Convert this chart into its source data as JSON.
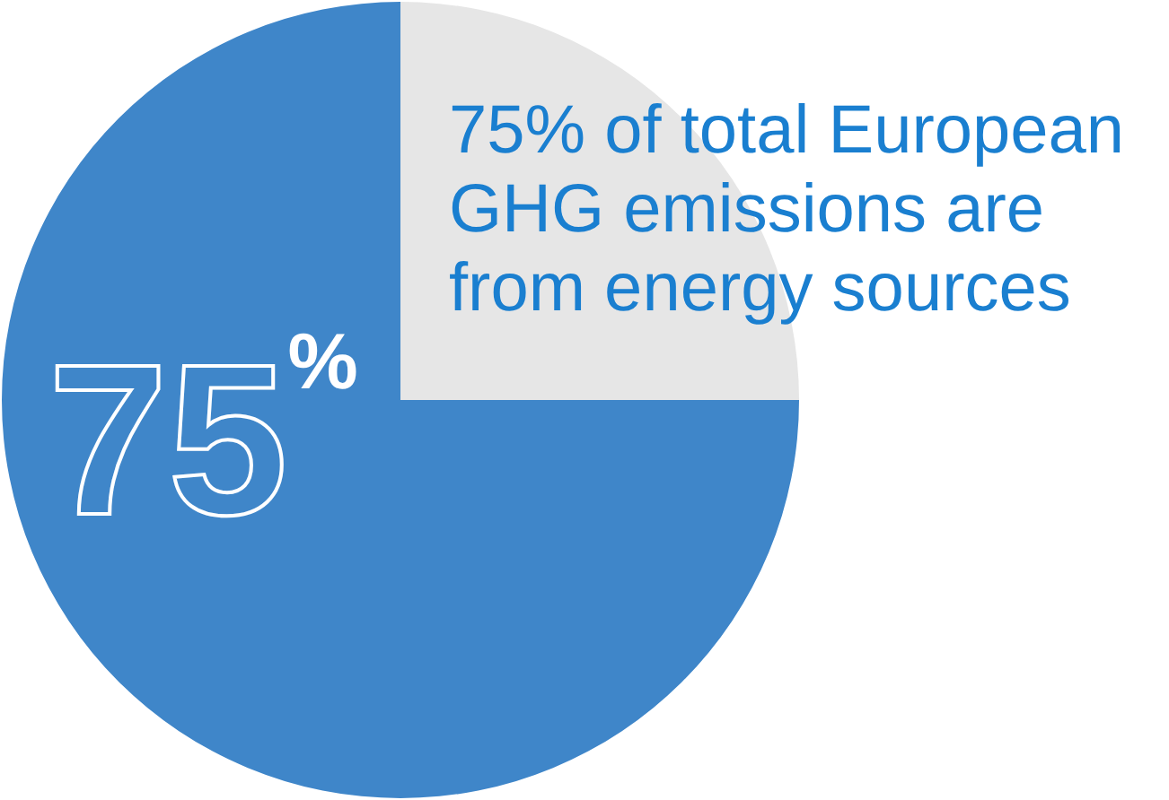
{
  "chart_data": {
    "type": "pie",
    "title": "75% of total European GHG emissions are from energy sources",
    "categories": [
      null,
      null
    ],
    "values": [
      25,
      75
    ],
    "colors": [
      "#e6e6e6",
      "#3f86c9"
    ],
    "value_labels": [
      null,
      "75$^{%}$"
    ]
  }
}
